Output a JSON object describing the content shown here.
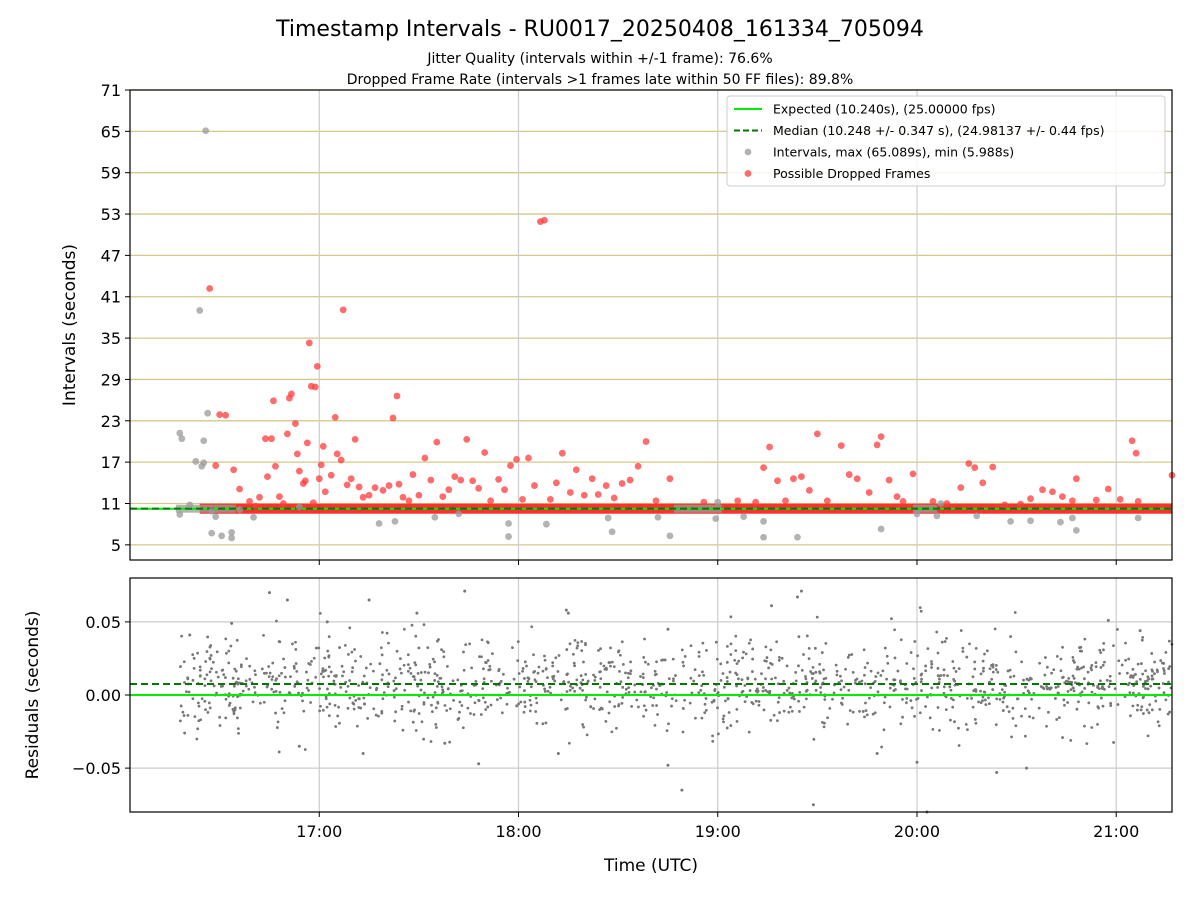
{
  "figure": {
    "title": "Timestamp Intervals - RU0017_20250408_161334_705094",
    "subtitle_1": "Jitter Quality (intervals within +/-1 frame): 76.6%",
    "subtitle_2": "Dropped Frame Rate (intervals >1 frames late within 50 FF files): 89.8%"
  },
  "chart_data": [
    {
      "type": "scatter",
      "panel": "intervals",
      "ylabel": "Intervals (seconds)",
      "xlabel": "",
      "x_unit": "hours (UTC)",
      "xlim": [
        16.05,
        21.28
      ],
      "ylim": [
        2.8,
        71
      ],
      "yticks": [
        5,
        11,
        17,
        23,
        29,
        35,
        41,
        47,
        53,
        59,
        65,
        71
      ],
      "xticks": [
        17,
        18,
        19,
        20,
        21
      ],
      "xtick_labels": [
        "17:00",
        "18:00",
        "19:00",
        "20:00",
        "21:00"
      ],
      "grid": true,
      "legend_placement": "top-right",
      "legend": [
        {
          "label": "Expected (10.240s), (25.00000 fps)",
          "style": "solid-line",
          "color": "#00ee00"
        },
        {
          "label": "Median (10.248 +/- 0.347 s), (24.98137 +/- 0.44 fps)",
          "style": "dashed-line",
          "color": "#007700"
        },
        {
          "label": "Intervals, max (65.089s), min (5.988s)",
          "style": "marker",
          "color": "#999999"
        },
        {
          "label": "Possible Dropped Frames",
          "style": "marker",
          "color": "#ff3b3b"
        }
      ],
      "expected_value": 10.24,
      "median_value": 10.248,
      "dense_band": {
        "x_range": [
          16.4,
          21.28
        ],
        "y": 10.24
      },
      "intervals_points": [
        [
          16.3,
          21.2
        ],
        [
          16.31,
          20.4
        ],
        [
          16.38,
          17.1
        ],
        [
          16.4,
          39
        ],
        [
          16.41,
          16.4
        ],
        [
          16.42,
          20.1
        ],
        [
          16.43,
          65.09
        ],
        [
          16.44,
          24.1
        ],
        [
          16.46,
          6.7
        ],
        [
          16.48,
          9.1
        ],
        [
          16.51,
          6.3
        ],
        [
          16.56,
          6.8
        ],
        [
          16.56,
          6.0
        ],
        [
          16.3,
          9.4
        ],
        [
          16.35,
          10.8
        ],
        [
          16.42,
          16.9
        ],
        [
          16.46,
          9.9
        ],
        [
          16.6,
          10.1
        ],
        [
          16.67,
          9.0
        ],
        [
          16.9,
          10.5
        ],
        [
          17.3,
          8.1
        ],
        [
          17.38,
          8.4
        ],
        [
          17.58,
          9.0
        ],
        [
          17.7,
          9.5
        ],
        [
          17.95,
          6.2
        ],
        [
          17.95,
          8.1
        ],
        [
          18.14,
          8.0
        ],
        [
          18.45,
          8.9
        ],
        [
          18.47,
          6.9
        ],
        [
          18.7,
          9.0
        ],
        [
          18.76,
          6.3
        ],
        [
          18.99,
          8.8
        ],
        [
          19.0,
          11.2
        ],
        [
          19.13,
          9.1
        ],
        [
          19.23,
          6.1
        ],
        [
          19.23,
          8.4
        ],
        [
          19.4,
          6.1
        ],
        [
          19.82,
          7.3
        ],
        [
          20.0,
          9.5
        ],
        [
          20.1,
          9.2
        ],
        [
          20.12,
          11.0
        ],
        [
          20.3,
          9.2
        ],
        [
          20.47,
          8.4
        ],
        [
          20.57,
          8.5
        ],
        [
          20.72,
          8.3
        ],
        [
          20.78,
          8.9
        ],
        [
          20.8,
          7.1
        ],
        [
          21.11,
          8.9
        ]
      ],
      "dropped_points": [
        [
          16.45,
          42.2
        ],
        [
          16.48,
          16.5
        ],
        [
          16.5,
          23.9
        ],
        [
          16.53,
          23.8
        ],
        [
          16.57,
          15.9
        ],
        [
          16.6,
          13.1
        ],
        [
          16.65,
          11.3
        ],
        [
          16.68,
          10.6
        ],
        [
          16.7,
          11.9
        ],
        [
          16.73,
          20.4
        ],
        [
          16.74,
          14.9
        ],
        [
          16.76,
          20.4
        ],
        [
          16.77,
          25.9
        ],
        [
          16.78,
          16.4
        ],
        [
          16.8,
          12.0
        ],
        [
          16.82,
          11.0
        ],
        [
          16.84,
          21.1
        ],
        [
          16.85,
          26.3
        ],
        [
          16.86,
          26.9
        ],
        [
          16.88,
          22.6
        ],
        [
          16.89,
          18.2
        ],
        [
          16.9,
          15.7
        ],
        [
          16.92,
          13.9
        ],
        [
          16.93,
          14.3
        ],
        [
          16.94,
          19.8
        ],
        [
          16.95,
          34.3
        ],
        [
          16.96,
          28.0
        ],
        [
          16.97,
          11.1
        ],
        [
          16.98,
          27.9
        ],
        [
          16.99,
          30.9
        ],
        [
          17.0,
          14.6
        ],
        [
          17.01,
          16.6
        ],
        [
          17.02,
          19.3
        ],
        [
          17.03,
          12.7
        ],
        [
          17.06,
          15.1
        ],
        [
          17.08,
          23.5
        ],
        [
          17.09,
          18.2
        ],
        [
          17.11,
          17.3
        ],
        [
          17.12,
          39.1
        ],
        [
          17.14,
          13.7
        ],
        [
          17.16,
          14.6
        ],
        [
          17.18,
          20.3
        ],
        [
          17.2,
          13.4
        ],
        [
          17.22,
          11.9
        ],
        [
          17.25,
          12.2
        ],
        [
          17.28,
          13.3
        ],
        [
          17.32,
          12.9
        ],
        [
          17.35,
          13.6
        ],
        [
          17.37,
          23.4
        ],
        [
          17.39,
          26.6
        ],
        [
          17.4,
          13.8
        ],
        [
          17.42,
          11.9
        ],
        [
          17.45,
          11.4
        ],
        [
          17.47,
          15.2
        ],
        [
          17.5,
          12.2
        ],
        [
          17.53,
          17.6
        ],
        [
          17.56,
          14.4
        ],
        [
          17.59,
          19.9
        ],
        [
          17.62,
          12.0
        ],
        [
          17.65,
          13.0
        ],
        [
          17.68,
          14.9
        ],
        [
          17.71,
          14.4
        ],
        [
          17.74,
          20.3
        ],
        [
          17.77,
          14.3
        ],
        [
          17.8,
          13.2
        ],
        [
          17.83,
          18.4
        ],
        [
          17.86,
          11.4
        ],
        [
          17.9,
          14.5
        ],
        [
          17.93,
          13.0
        ],
        [
          17.96,
          16.5
        ],
        [
          17.99,
          17.4
        ],
        [
          18.02,
          11.6
        ],
        [
          18.05,
          17.6
        ],
        [
          18.08,
          13.6
        ],
        [
          18.11,
          51.9
        ],
        [
          18.13,
          52.1
        ],
        [
          18.16,
          11.6
        ],
        [
          18.19,
          14.0
        ],
        [
          18.22,
          18.3
        ],
        [
          18.26,
          12.6
        ],
        [
          18.29,
          15.9
        ],
        [
          18.33,
          12.2
        ],
        [
          18.37,
          14.6
        ],
        [
          18.4,
          12.3
        ],
        [
          18.44,
          13.6
        ],
        [
          18.48,
          11.8
        ],
        [
          18.52,
          13.9
        ],
        [
          18.56,
          14.4
        ],
        [
          18.6,
          16.4
        ],
        [
          18.64,
          20.0
        ],
        [
          18.69,
          11.4
        ],
        [
          18.76,
          14.6
        ],
        [
          18.93,
          11.2
        ],
        [
          19.1,
          11.4
        ],
        [
          19.19,
          11.2
        ],
        [
          19.23,
          16.2
        ],
        [
          19.26,
          19.2
        ],
        [
          19.3,
          14.3
        ],
        [
          19.34,
          11.4
        ],
        [
          19.38,
          14.6
        ],
        [
          19.42,
          14.9
        ],
        [
          19.46,
          12.9
        ],
        [
          19.5,
          21.1
        ],
        [
          19.55,
          11.4
        ],
        [
          19.62,
          19.4
        ],
        [
          19.66,
          15.2
        ],
        [
          19.7,
          14.6
        ],
        [
          19.76,
          12.6
        ],
        [
          19.8,
          19.5
        ],
        [
          19.82,
          20.7
        ],
        [
          19.86,
          14.4
        ],
        [
          19.9,
          12.0
        ],
        [
          19.93,
          11.3
        ],
        [
          19.98,
          15.3
        ],
        [
          20.08,
          11.3
        ],
        [
          20.15,
          11.0
        ],
        [
          20.22,
          13.3
        ],
        [
          20.26,
          16.8
        ],
        [
          20.29,
          16.2
        ],
        [
          20.33,
          14.0
        ],
        [
          20.38,
          16.3
        ],
        [
          20.44,
          10.8
        ],
        [
          20.52,
          10.9
        ],
        [
          20.57,
          11.7
        ],
        [
          20.63,
          13.0
        ],
        [
          20.68,
          12.7
        ],
        [
          20.73,
          12.0
        ],
        [
          20.78,
          11.4
        ],
        [
          20.8,
          14.6
        ],
        [
          20.9,
          11.5
        ],
        [
          20.96,
          13.1
        ],
        [
          21.02,
          11.6
        ],
        [
          21.08,
          20.1
        ],
        [
          21.1,
          18.3
        ],
        [
          21.11,
          11.3
        ],
        [
          21.28,
          15.1
        ]
      ]
    },
    {
      "type": "scatter",
      "panel": "residuals",
      "ylabel": "Residuals (seconds)",
      "xlabel": "Time (UTC)",
      "x_unit": "hours (UTC)",
      "xlim": [
        16.05,
        21.28
      ],
      "ylim": [
        -0.08,
        0.08
      ],
      "yticks": [
        -0.05,
        0.0,
        0.05
      ],
      "ytick_labels": [
        "−0.05",
        "0.00",
        "0.05"
      ],
      "xticks": [
        17,
        18,
        19,
        20,
        21
      ],
      "xtick_labels": [
        "17:00",
        "18:00",
        "19:00",
        "20:00",
        "21:00"
      ],
      "grid": true,
      "expected_residual": 0.0,
      "median_residual": 0.0075,
      "residual_spread_sd": 0.018,
      "residual_points": [
        [
          16.35,
          0.041
        ],
        [
          16.56,
          0.049
        ],
        [
          16.75,
          0.07
        ],
        [
          16.84,
          0.065
        ],
        [
          17.04,
          0.05
        ],
        [
          17.25,
          0.065
        ],
        [
          17.49,
          0.056
        ],
        [
          17.73,
          0.071
        ],
        [
          18.24,
          0.058
        ],
        [
          18.25,
          0.056
        ],
        [
          18.75,
          0.045
        ],
        [
          18.82,
          -0.065
        ],
        [
          18.75,
          -0.048
        ],
        [
          19.27,
          0.061
        ],
        [
          19.4,
          0.067
        ],
        [
          19.48,
          -0.075
        ],
        [
          19.42,
          0.071
        ],
        [
          20.05,
          -0.08
        ],
        [
          20.4,
          -0.053
        ],
        [
          20.55,
          -0.05
        ],
        [
          20.96,
          0.051
        ],
        [
          21.12,
          0.044
        ],
        [
          16.9,
          -0.035
        ],
        [
          17.22,
          -0.04
        ],
        [
          17.63,
          -0.033
        ],
        [
          17.8,
          -0.047
        ],
        [
          18.2,
          -0.04
        ],
        [
          19.8,
          -0.04
        ],
        [
          20.0,
          -0.046
        ]
      ]
    }
  ]
}
